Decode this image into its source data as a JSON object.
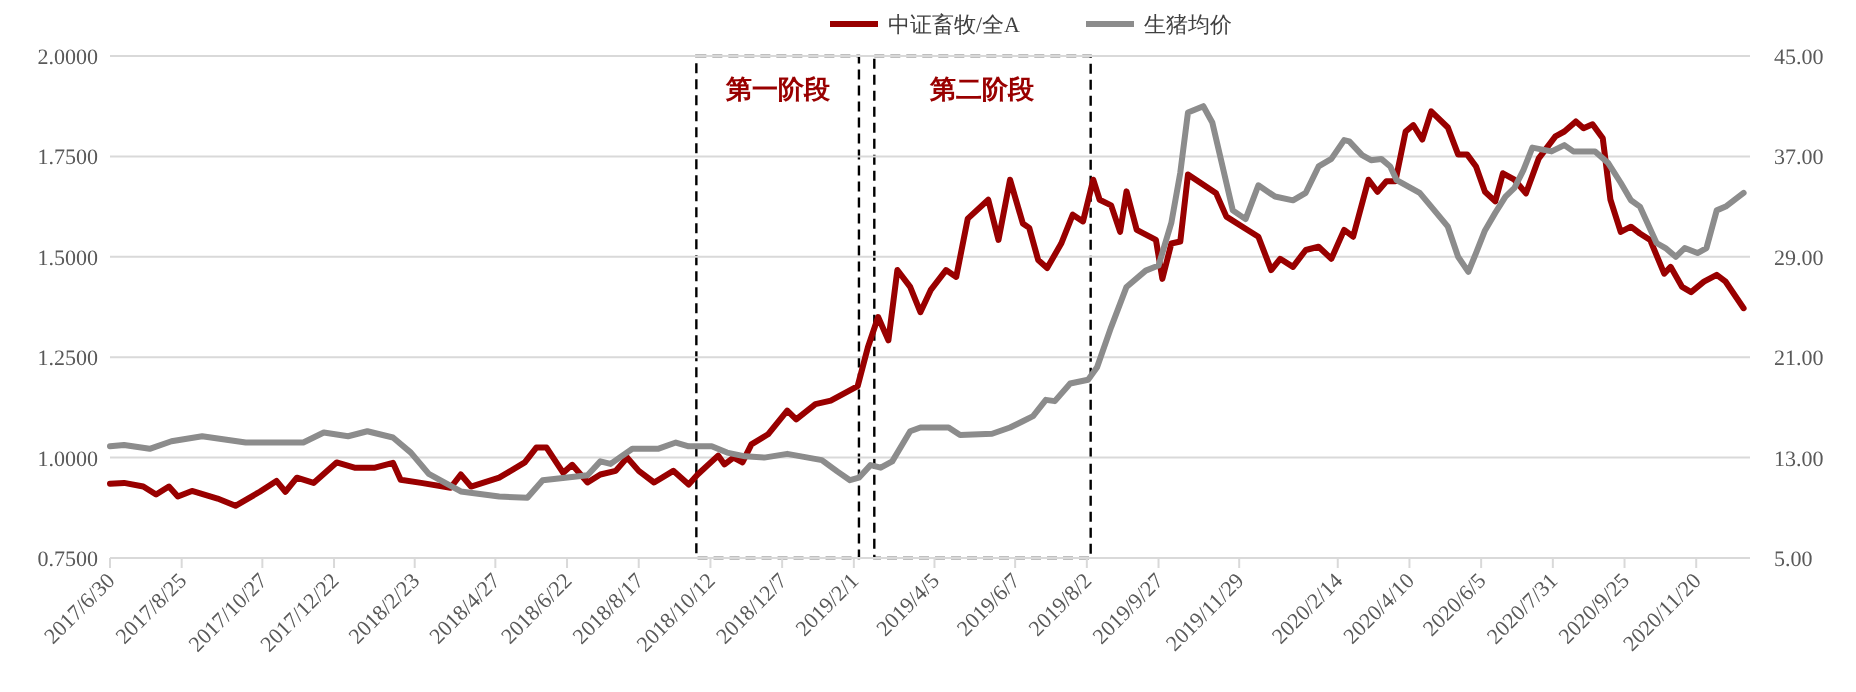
{
  "chart_data": {
    "type": "line",
    "legend": "top",
    "grid": "y",
    "line_style": "solid",
    "xlim": [
      "2017-06-30",
      "2021-01-01"
    ],
    "xticks": [
      {
        "value": "2017-06-30",
        "label": "2017/6/30"
      },
      {
        "value": "2017-08-25",
        "label": "2017/8/25"
      },
      {
        "value": "2017-10-27",
        "label": "2017/10/27"
      },
      {
        "value": "2017-12-22",
        "label": "2017/12/22"
      },
      {
        "value": "2018-02-23",
        "label": "2018/2/23"
      },
      {
        "value": "2018-04-27",
        "label": "2018/4/27"
      },
      {
        "value": "2018-06-22",
        "label": "2018/6/22"
      },
      {
        "value": "2018-08-17",
        "label": "2018/8/17"
      },
      {
        "value": "2018-10-12",
        "label": "2018/10/12"
      },
      {
        "value": "2018-12-07",
        "label": "2018/12/7"
      },
      {
        "value": "2019-02-01",
        "label": "2019/2/1"
      },
      {
        "value": "2019-04-05",
        "label": "2019/4/5"
      },
      {
        "value": "2019-06-07",
        "label": "2019/6/7"
      },
      {
        "value": "2019-08-02",
        "label": "2019/8/2"
      },
      {
        "value": "2019-09-27",
        "label": "2019/9/27"
      },
      {
        "value": "2019-11-29",
        "label": "2019/11/29"
      },
      {
        "value": "2020-02-14",
        "label": "2020/2/14"
      },
      {
        "value": "2020-04-10",
        "label": "2020/4/10"
      },
      {
        "value": "2020-06-05",
        "label": "2020/6/5"
      },
      {
        "value": "2020-07-31",
        "label": "2020/7/31"
      },
      {
        "value": "2020-09-25",
        "label": "2020/9/25"
      },
      {
        "value": "2020-11-20",
        "label": "2020/11/20"
      }
    ],
    "ylim": [
      0.75,
      2.0
    ],
    "yticks": [
      {
        "value": 0.75,
        "label": "0.7500"
      },
      {
        "value": 1.0,
        "label": "1.0000"
      },
      {
        "value": 1.25,
        "label": "1.2500"
      },
      {
        "value": 1.5,
        "label": "1.5000"
      },
      {
        "value": 1.75,
        "label": "1.7500"
      },
      {
        "value": 2.0,
        "label": "2.0000"
      }
    ],
    "y2lim": [
      5,
      45
    ],
    "y2ticks": [
      {
        "value": 5,
        "label": "5.00"
      },
      {
        "value": 13,
        "label": "13.00"
      },
      {
        "value": 21,
        "label": "21.00"
      },
      {
        "value": 29,
        "label": "29.00"
      },
      {
        "value": 37,
        "label": "37.00"
      },
      {
        "value": 45,
        "label": "45.00"
      }
    ],
    "bands": [
      {
        "axis": "x",
        "from": "2018-10-01",
        "to": "2019-02-05",
        "label": "第一阶段",
        "color": "#ffffff"
      },
      {
        "axis": "x",
        "from": "2019-02-17",
        "to": "2019-08-05",
        "label": "第二阶段",
        "color": "#ffffff"
      }
    ],
    "series": [
      {
        "name": "中证畜牧/全A",
        "color": "#990000",
        "x": [
          "2017-06-30",
          "2017-07-11",
          "2017-07-26",
          "2017-08-05",
          "2017-08-15",
          "2017-08-22",
          "2017-09-02",
          "2017-09-22",
          "2017-10-06",
          "2017-10-25",
          "2017-11-07",
          "2017-11-14",
          "2017-11-23",
          "2017-12-06",
          "2017-12-24",
          "2018-01-07",
          "2018-01-23",
          "2018-02-06",
          "2018-02-12",
          "2018-02-28",
          "2018-03-23",
          "2018-03-31",
          "2018-04-08",
          "2018-04-30",
          "2018-05-20",
          "2018-05-29",
          "2018-06-06",
          "2018-06-19",
          "2018-06-26",
          "2018-07-08",
          "2018-07-18",
          "2018-07-30",
          "2018-08-08",
          "2018-08-17",
          "2018-08-29",
          "2018-09-13",
          "2018-09-25",
          "2018-10-02",
          "2018-10-18",
          "2018-10-23",
          "2018-10-30",
          "2018-11-06",
          "2018-11-13",
          "2018-11-26",
          "2018-12-11",
          "2018-12-18",
          "2019-01-02",
          "2019-01-14",
          "2019-02-04",
          "2019-02-12",
          "2019-02-20",
          "2019-02-28",
          "2019-03-07",
          "2019-03-17",
          "2019-03-25",
          "2019-04-02",
          "2019-04-14",
          "2019-04-22",
          "2019-05-01",
          "2019-05-17",
          "2019-05-25",
          "2019-06-03",
          "2019-06-13",
          "2019-06-18",
          "2019-06-25",
          "2019-07-02",
          "2019-07-13",
          "2019-07-22",
          "2019-07-30",
          "2019-08-07",
          "2019-08-12",
          "2019-08-21",
          "2019-08-28",
          "2019-09-02",
          "2019-09-10",
          "2019-09-25",
          "2019-09-30",
          "2019-10-07",
          "2019-10-14",
          "2019-10-20",
          "2019-11-11",
          "2019-11-19",
          "2019-12-04",
          "2019-12-14",
          "2019-12-24",
          "2019-12-31",
          "2020-01-10",
          "2020-01-20",
          "2020-01-30",
          "2020-02-09",
          "2020-02-19",
          "2020-02-26",
          "2020-03-09",
          "2020-03-16",
          "2020-03-23",
          "2020-03-30",
          "2020-04-07",
          "2020-04-13",
          "2020-04-20",
          "2020-04-27",
          "2020-05-10",
          "2020-05-18",
          "2020-05-25",
          "2020-06-01",
          "2020-06-08",
          "2020-06-16",
          "2020-06-22",
          "2020-07-01",
          "2020-07-10",
          "2020-07-20",
          "2020-08-02",
          "2020-08-09",
          "2020-08-18",
          "2020-08-24",
          "2020-08-31",
          "2020-09-08",
          "2020-09-14",
          "2020-09-22",
          "2020-09-30",
          "2020-10-07",
          "2020-10-15",
          "2020-10-26",
          "2020-10-31",
          "2020-11-09",
          "2020-11-16",
          "2020-11-26",
          "2020-12-06",
          "2020-12-13",
          "2020-12-27"
        ],
        "values": [
          0.935,
          0.937,
          0.928,
          0.908,
          0.928,
          0.903,
          0.917,
          0.898,
          0.88,
          0.915,
          0.942,
          0.915,
          0.95,
          0.937,
          0.988,
          0.975,
          0.975,
          0.987,
          0.945,
          0.937,
          0.925,
          0.958,
          0.928,
          0.95,
          0.988,
          1.025,
          1.025,
          0.962,
          0.982,
          0.938,
          0.958,
          0.967,
          1.0,
          0.967,
          0.938,
          0.967,
          0.933,
          0.958,
          1.005,
          0.983,
          1.0,
          0.988,
          1.033,
          1.058,
          1.117,
          1.095,
          1.133,
          1.142,
          1.178,
          1.275,
          1.35,
          1.292,
          1.467,
          1.425,
          1.362,
          1.417,
          1.467,
          1.45,
          1.595,
          1.642,
          1.542,
          1.692,
          1.583,
          1.572,
          1.492,
          1.472,
          1.533,
          1.605,
          1.588,
          1.692,
          1.642,
          1.628,
          1.562,
          1.663,
          1.567,
          1.542,
          1.445,
          1.533,
          1.538,
          1.705,
          1.658,
          1.6,
          1.57,
          1.55,
          1.467,
          1.495,
          1.475,
          1.517,
          1.525,
          1.495,
          1.567,
          1.55,
          1.692,
          1.662,
          1.688,
          1.688,
          1.812,
          1.828,
          1.792,
          1.862,
          1.822,
          1.755,
          1.755,
          1.725,
          1.662,
          1.638,
          1.708,
          1.692,
          1.658,
          1.745,
          1.8,
          1.812,
          1.837,
          1.82,
          1.83,
          1.795,
          1.642,
          1.562,
          1.575,
          1.558,
          1.542,
          1.458,
          1.475,
          1.425,
          1.412,
          1.438,
          1.455,
          1.438,
          1.372
        ]
      },
      {
        "name": "生猪均价",
        "color": "#8c8c8c",
        "axis": "y2",
        "x": [
          "2017-06-30",
          "2017-07-11",
          "2017-07-31",
          "2017-08-17",
          "2017-09-10",
          "2017-10-14",
          "2017-11-28",
          "2017-12-14",
          "2018-01-02",
          "2018-01-17",
          "2018-02-06",
          "2018-02-20",
          "2018-03-06",
          "2018-03-31",
          "2018-04-30",
          "2018-05-22",
          "2018-06-03",
          "2018-07-08",
          "2018-07-18",
          "2018-07-26",
          "2018-08-12",
          "2018-09-01",
          "2018-09-15",
          "2018-09-25",
          "2018-10-13",
          "2018-10-25",
          "2018-11-08",
          "2018-11-23",
          "2018-12-11",
          "2019-01-07",
          "2019-01-19",
          "2019-01-29",
          "2019-02-05",
          "2019-02-14",
          "2019-02-22",
          "2019-03-03",
          "2019-03-17",
          "2019-03-25",
          "2019-04-16",
          "2019-04-25",
          "2019-05-20",
          "2019-06-03",
          "2019-06-13",
          "2019-06-21",
          "2019-07-01",
          "2019-07-08",
          "2019-07-20",
          "2019-08-03",
          "2019-08-10",
          "2019-08-21",
          "2019-09-02",
          "2019-09-17",
          "2019-09-27",
          "2019-10-07",
          "2019-10-14",
          "2019-10-20",
          "2019-11-01",
          "2019-11-08",
          "2019-11-16",
          "2019-11-24",
          "2019-12-04",
          "2019-12-14",
          "2019-12-27",
          "2020-01-10",
          "2020-01-20",
          "2020-01-30",
          "2020-02-09",
          "2020-02-19",
          "2020-02-23",
          "2020-03-04",
          "2020-03-11",
          "2020-03-19",
          "2020-03-26",
          "2020-03-31",
          "2020-04-18",
          "2020-04-27",
          "2020-05-10",
          "2020-05-18",
          "2020-05-26",
          "2020-06-01",
          "2020-06-08",
          "2020-06-16",
          "2020-06-24",
          "2020-07-01",
          "2020-07-08",
          "2020-07-15",
          "2020-07-30",
          "2020-08-09",
          "2020-08-16",
          "2020-09-02",
          "2020-09-12",
          "2020-09-22",
          "2020-09-30",
          "2020-10-07",
          "2020-10-12",
          "2020-10-20",
          "2020-10-27",
          "2020-11-04",
          "2020-11-11",
          "2020-11-21",
          "2020-11-28",
          "2020-12-06",
          "2020-12-13",
          "2020-12-27"
        ],
        "values": [
          13.9,
          14.0,
          13.7,
          14.3,
          14.7,
          14.2,
          14.2,
          15.0,
          14.7,
          15.1,
          14.6,
          13.4,
          11.7,
          10.3,
          9.9,
          9.8,
          11.2,
          11.6,
          12.7,
          12.5,
          13.7,
          13.7,
          14.2,
          13.9,
          13.9,
          13.4,
          13.1,
          13.0,
          13.3,
          12.8,
          11.9,
          11.2,
          11.4,
          12.4,
          12.2,
          12.7,
          15.1,
          15.4,
          15.4,
          14.8,
          14.9,
          15.4,
          15.9,
          16.3,
          17.6,
          17.5,
          18.9,
          19.2,
          20.2,
          23.4,
          26.6,
          27.9,
          28.3,
          31.7,
          35.7,
          40.5,
          41.0,
          39.7,
          36.2,
          32.7,
          32.0,
          34.7,
          33.8,
          33.5,
          34.1,
          36.2,
          36.8,
          38.3,
          38.2,
          37.1,
          36.7,
          36.8,
          36.2,
          35.1,
          34.1,
          33.0,
          31.4,
          29.0,
          27.8,
          29.3,
          31.1,
          32.5,
          33.8,
          34.5,
          35.9,
          37.7,
          37.4,
          37.9,
          37.4,
          37.4,
          36.5,
          34.9,
          33.5,
          33.0,
          31.9,
          30.1,
          29.7,
          29.0,
          29.7,
          29.3,
          29.7,
          32.7,
          33.0,
          34.1
        ]
      }
    ]
  }
}
